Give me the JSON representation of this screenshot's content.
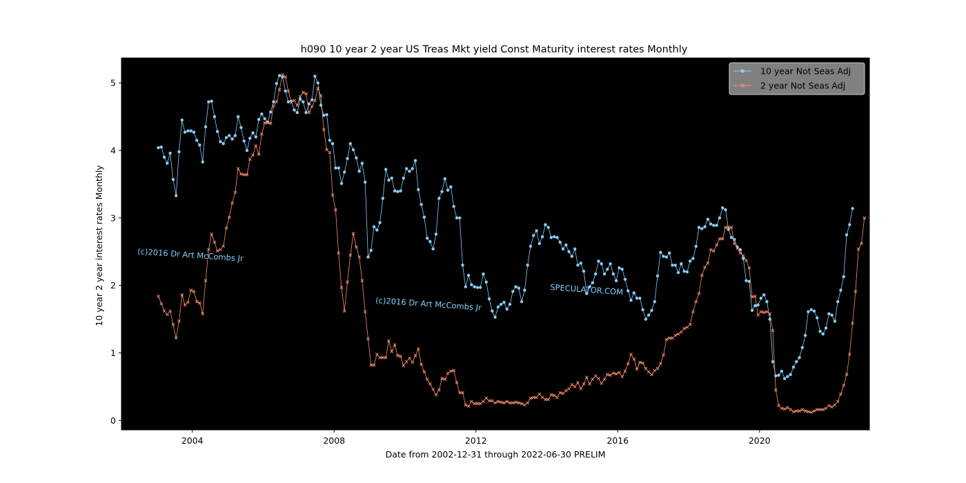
{
  "chart_data": {
    "type": "line",
    "title": "h090 10 year 2 year US Treas Mkt yield Const Maturity interest rates Monthly",
    "xlabel": "Date from 2002-12-31 through 2022-06-30 PRELIM",
    "ylabel": "10 year 2 year interest rates Monthly",
    "x_ticks": [
      "2004",
      "2008",
      "2012",
      "2016",
      "2020"
    ],
    "y_ticks": [
      "0",
      "1",
      "2",
      "3",
      "4",
      "5"
    ],
    "xlim": [
      2002.0,
      2023.1
    ],
    "ylim": [
      -0.14,
      5.37
    ],
    "background_color": "#000000",
    "grid": false,
    "legend_position": "top-right",
    "watermarks": [
      "(c)2016 Dr Art McCombs Jr",
      "(c)2016 Dr Art McCombs Jr",
      "SPECULATOR.COM"
    ],
    "monthly_start": "2003-01",
    "series": [
      {
        "name": "10 year Not Seas Adj",
        "color": "#87cefa",
        "marker": "circle",
        "values": [
          4.04,
          4.05,
          3.9,
          3.81,
          3.96,
          3.57,
          3.33,
          3.98,
          4.45,
          4.27,
          4.29,
          4.29,
          4.27,
          4.15,
          4.08,
          3.83,
          4.35,
          4.72,
          4.73,
          4.5,
          4.28,
          4.13,
          4.1,
          4.19,
          4.22,
          4.17,
          4.22,
          4.5,
          4.34,
          4.14,
          4.0,
          4.18,
          4.26,
          4.2,
          4.46,
          4.54,
          4.47,
          4.42,
          4.57,
          4.72,
          4.99,
          5.11,
          5.09,
          4.88,
          4.72,
          4.73,
          4.6,
          4.56,
          4.76,
          4.72,
          4.56,
          4.69,
          4.75,
          5.1,
          5.0,
          4.67,
          4.52,
          4.53,
          4.15,
          4.1,
          3.74,
          3.74,
          3.51,
          3.68,
          3.88,
          4.1,
          4.01,
          3.89,
          3.69,
          3.81,
          3.53,
          2.42,
          2.52,
          2.87,
          2.82,
          2.93,
          3.29,
          3.72,
          3.56,
          3.59,
          3.4,
          3.39,
          3.4,
          3.59,
          3.73,
          3.69,
          3.73,
          3.85,
          3.42,
          3.2,
          3.01,
          2.7,
          2.65,
          2.54,
          2.76,
          3.29,
          3.39,
          3.58,
          3.41,
          3.46,
          3.17,
          3.0,
          3.0,
          2.3,
          1.98,
          2.15,
          2.01,
          1.98,
          1.97,
          1.97,
          2.17,
          2.05,
          1.8,
          1.62,
          1.53,
          1.68,
          1.72,
          1.75,
          1.65,
          1.72,
          1.91,
          1.98,
          1.96,
          1.76,
          1.93,
          2.3,
          2.58,
          2.74,
          2.81,
          2.62,
          2.72,
          2.9,
          2.86,
          2.71,
          2.72,
          2.71,
          2.64,
          2.54,
          2.6,
          2.5,
          2.43,
          2.54,
          2.3,
          2.33,
          2.21,
          1.88,
          1.98,
          2.04,
          2.17,
          2.36,
          2.32,
          2.17,
          2.24,
          2.32,
          2.17,
          2.07,
          2.26,
          2.24,
          2.09,
          1.92,
          1.78,
          1.89,
          1.81,
          1.81,
          1.64,
          1.5,
          1.56,
          1.63,
          1.76,
          2.14,
          2.49,
          2.43,
          2.42,
          2.48,
          2.3,
          2.3,
          2.19,
          2.32,
          2.21,
          2.2,
          2.36,
          2.4,
          2.58,
          2.86,
          2.84,
          2.87,
          2.98,
          2.91,
          2.89,
          2.89,
          3.0,
          3.15,
          3.12,
          2.83,
          2.71,
          2.68,
          2.57,
          2.53,
          2.4,
          2.07,
          2.06,
          1.63,
          1.7,
          1.71,
          1.81,
          1.86,
          1.76,
          1.5,
          0.87,
          0.66,
          0.67,
          0.73,
          0.62,
          0.65,
          0.68,
          0.79,
          0.87,
          0.93,
          1.08,
          1.26,
          1.61,
          1.64,
          1.62,
          1.52,
          1.32,
          1.28,
          1.37,
          1.58,
          1.56,
          1.47,
          1.76,
          1.93,
          2.13,
          2.75,
          2.9,
          3.14
        ]
      },
      {
        "name": "2 year Not Seas Adj",
        "color": "#fa8e6b",
        "marker": "x",
        "values": [
          1.84,
          1.73,
          1.62,
          1.57,
          1.62,
          1.42,
          1.22,
          1.47,
          1.86,
          1.71,
          1.75,
          1.93,
          1.91,
          1.76,
          1.74,
          1.58,
          2.07,
          2.53,
          2.76,
          2.64,
          2.51,
          2.53,
          2.58,
          2.85,
          3.01,
          3.22,
          3.38,
          3.73,
          3.65,
          3.64,
          3.64,
          3.87,
          3.93,
          4.07,
          3.94,
          4.24,
          4.41,
          4.41,
          4.4,
          4.66,
          4.72,
          4.9,
          5.12,
          5.09,
          4.88,
          4.71,
          4.74,
          4.67,
          4.8,
          4.86,
          4.84,
          4.56,
          4.65,
          4.74,
          4.92,
          4.81,
          4.31,
          4.01,
          3.97,
          3.34,
          3.12,
          2.48,
          1.97,
          1.62,
          2.05,
          2.45,
          2.77,
          2.57,
          2.42,
          2.07,
          1.61,
          1.21,
          0.82,
          0.82,
          0.98,
          0.93,
          0.93,
          0.93,
          1.18,
          1.02,
          1.12,
          0.96,
          0.95,
          0.81,
          0.87,
          0.92,
          0.86,
          0.96,
          1.06,
          0.83,
          0.72,
          0.61,
          0.54,
          0.46,
          0.38,
          0.45,
          0.62,
          0.61,
          0.7,
          0.73,
          0.74,
          0.56,
          0.41,
          0.41,
          0.23,
          0.21,
          0.28,
          0.25,
          0.25,
          0.25,
          0.28,
          0.33,
          0.29,
          0.29,
          0.26,
          0.28,
          0.27,
          0.26,
          0.28,
          0.26,
          0.26,
          0.27,
          0.26,
          0.25,
          0.23,
          0.26,
          0.33,
          0.34,
          0.34,
          0.39,
          0.34,
          0.31,
          0.31,
          0.38,
          0.37,
          0.34,
          0.41,
          0.4,
          0.44,
          0.47,
          0.53,
          0.5,
          0.56,
          0.47,
          0.54,
          0.64,
          0.54,
          0.61,
          0.66,
          0.62,
          0.55,
          0.61,
          0.68,
          0.67,
          0.7,
          0.69,
          0.71,
          0.65,
          0.73,
          0.84,
          0.98,
          0.91,
          0.76,
          0.86,
          0.85,
          0.77,
          0.72,
          0.68,
          0.74,
          0.77,
          0.84,
          0.97,
          1.2,
          1.22,
          1.22,
          1.26,
          1.28,
          1.31,
          1.36,
          1.38,
          1.42,
          1.61,
          1.76,
          1.88,
          2.15,
          2.27,
          2.33,
          2.53,
          2.51,
          2.6,
          2.69,
          2.69,
          2.86,
          2.86,
          2.86,
          2.62,
          2.55,
          2.48,
          2.44,
          2.37,
          2.26,
          1.83,
          1.84,
          1.56,
          1.61,
          1.6,
          1.61,
          1.58,
          1.33,
          0.45,
          0.22,
          0.18,
          0.17,
          0.19,
          0.16,
          0.13,
          0.14,
          0.14,
          0.16,
          0.14,
          0.13,
          0.12,
          0.14,
          0.16,
          0.16,
          0.16,
          0.18,
          0.22,
          0.2,
          0.23,
          0.28,
          0.39,
          0.52,
          0.68,
          0.98,
          1.44,
          1.91,
          2.54,
          2.62,
          3.0
        ]
      }
    ]
  }
}
